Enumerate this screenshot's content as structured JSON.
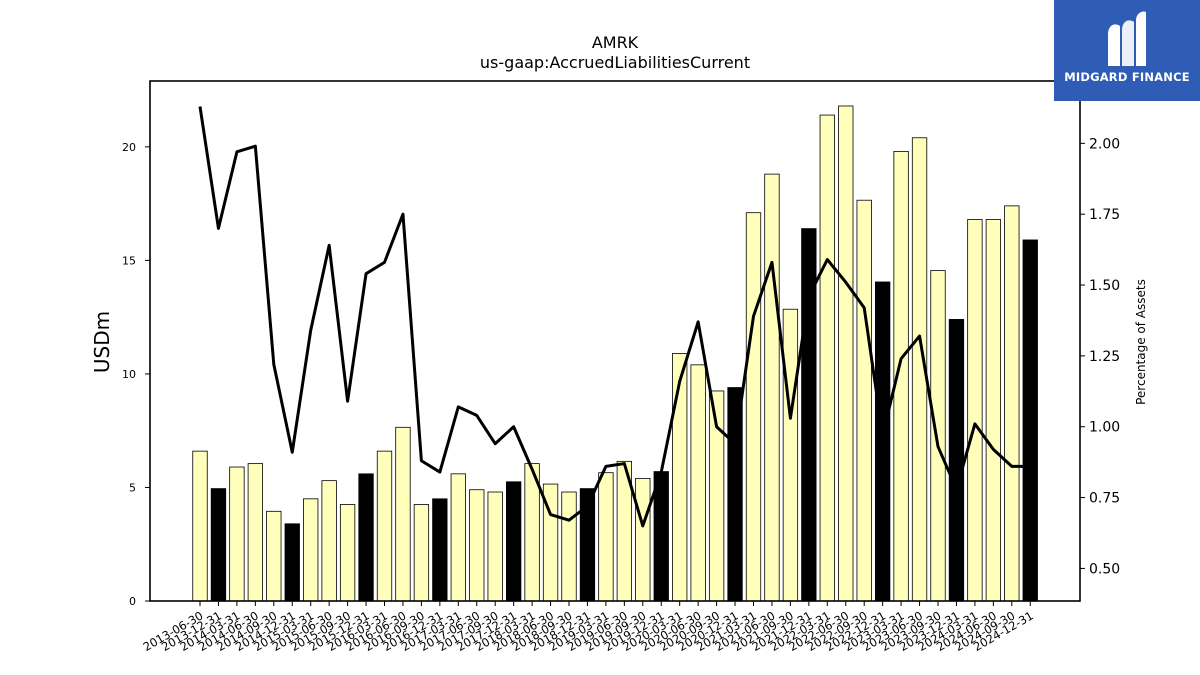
{
  "chart_data": {
    "type": "bar",
    "title": "AMRK",
    "subtitle": "us-gaap:AccruedLiabilitiesCurrent",
    "ylabel": "USDm",
    "y2label": "Percentage of Assets",
    "ylim": [
      0,
      22.9
    ],
    "y2lim": [
      0.385,
      2.22
    ],
    "yticks": [
      0,
      5,
      10,
      15,
      20
    ],
    "y2ticks": [
      "0.50",
      "0.75",
      "1.00",
      "1.25",
      "1.50",
      "1.75",
      "2.00"
    ],
    "categories": [
      "2013-06-30",
      "2013-12-31",
      "2014-03-31",
      "2014-06-30",
      "2014-09-30",
      "2014-12-31",
      "2015-03-31",
      "2015-06-30",
      "2015-09-30",
      "2015-12-31",
      "2016-03-31",
      "2016-06-30",
      "2016-09-30",
      "2016-12-31",
      "2017-03-31",
      "2017-06-30",
      "2017-09-30",
      "2017-12-31",
      "2018-03-31",
      "2018-06-30",
      "2018-09-30",
      "2018-12-31",
      "2019-03-31",
      "2019-06-30",
      "2019-09-30",
      "2019-12-31",
      "2020-03-31",
      "2020-06-30",
      "2020-09-30",
      "2020-12-31",
      "2021-03-31",
      "2021-06-30",
      "2021-09-30",
      "2021-12-31",
      "2022-03-31",
      "2022-06-30",
      "2022-09-30",
      "2022-12-31",
      "2023-03-31",
      "2023-06-30",
      "2023-09-30",
      "2023-12-31",
      "2024-03-31",
      "2024-06-30",
      "2024-09-30",
      "2024-12-31"
    ],
    "series": [
      {
        "values": [
          6.6,
          4.95,
          5.9,
          6.05,
          3.95,
          3.4,
          4.5,
          5.3,
          4.25,
          5.6,
          6.6,
          7.65,
          4.25,
          4.5,
          5.6,
          4.9,
          4.8,
          5.25,
          6.05,
          5.15,
          4.8,
          4.95,
          5.65,
          6.15,
          5.4,
          5.7,
          10.9,
          10.4,
          9.25,
          9.4,
          17.1,
          18.8,
          12.85,
          16.4,
          21.4,
          21.8,
          17.65,
          14.05,
          19.8,
          20.4,
          14.55,
          12.4,
          16.8,
          16.8,
          17.4,
          15.9
        ]
      },
      {
        "axis": "right",
        "values": [
          2.13,
          1.7,
          1.97,
          1.99,
          1.22,
          0.91,
          1.34,
          1.64,
          1.09,
          1.54,
          1.58,
          1.75,
          0.88,
          0.84,
          1.07,
          1.04,
          0.94,
          1.0,
          0.85,
          0.69,
          0.67,
          0.72,
          0.86,
          0.87,
          0.65,
          0.84,
          1.16,
          1.37,
          1.0,
          0.94,
          1.39,
          1.58,
          1.03,
          1.46,
          1.59,
          1.51,
          1.42,
          0.97,
          1.24,
          1.32,
          0.93,
          0.78,
          1.01,
          0.92,
          0.86,
          0.86
        ]
      }
    ],
    "highlight_color": "#000000",
    "bar_color": "#ffffbb",
    "line_color": "#000000",
    "grid": false
  },
  "logo": {
    "text": "MIDGARD FINANCE",
    "color": "#2f5db5"
  }
}
